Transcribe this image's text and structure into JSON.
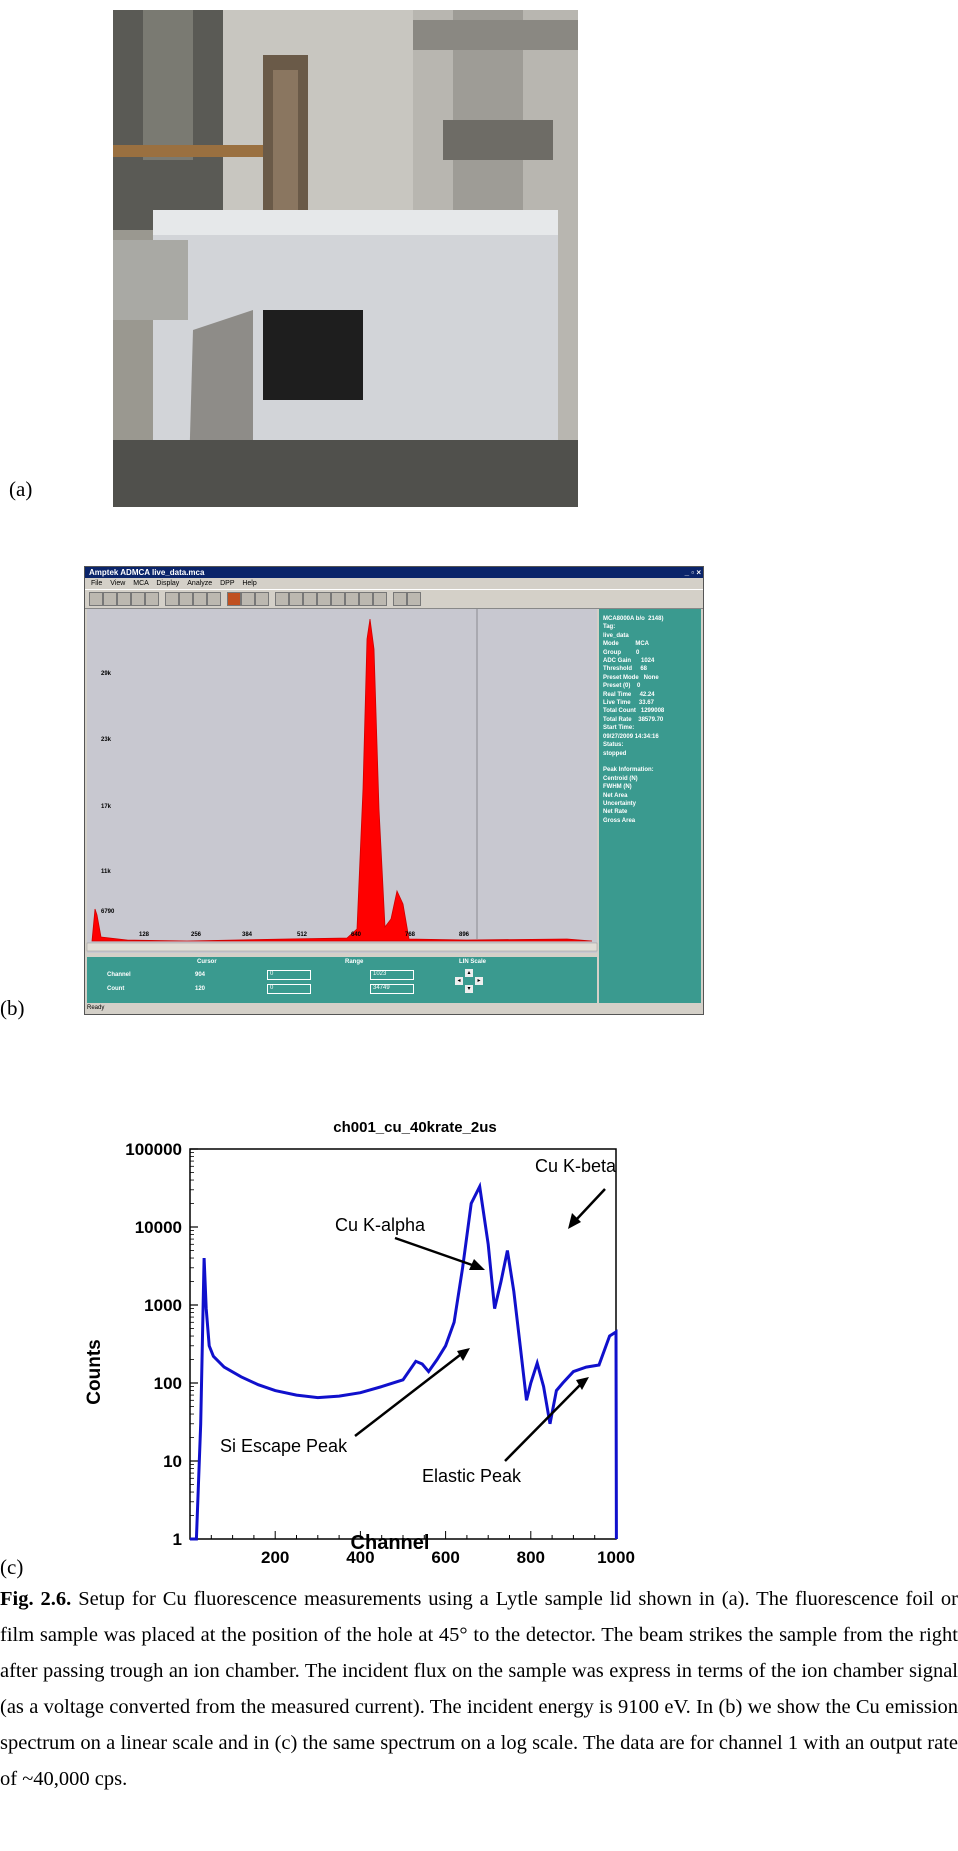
{
  "labels": {
    "a": "(a)",
    "b": "(b)",
    "c": "(c)"
  },
  "mca": {
    "title": "Amptek ADMCA   live_data.mca",
    "menu": [
      "File",
      "View",
      "MCA",
      "Display",
      "Analyze",
      "DPP",
      "Help"
    ],
    "y_ticks": [
      "29k",
      "23k",
      "17k",
      "11k",
      "6790"
    ],
    "x_ticks": [
      "128",
      "256",
      "384",
      "512",
      "640",
      "768",
      "896"
    ],
    "side_lines": [
      "MCA8000A b/o  2148)",
      "Tag:",
      "live_data",
      "Mode          MCA",
      "Group         0",
      "ADC Gain      1024",
      "Threshold     68",
      "Preset Mode   None",
      "Preset (0)    0",
      "Real Time     42.24",
      "Live Time     33.67",
      "Total Count   1299008",
      "Total Rate    38579.70",
      "Start Time:",
      "09/27/2009 14:34:16",
      "Status:",
      "stopped",
      "",
      "Peak Information:",
      "Centroid (N)",
      "FWHM (N)",
      "Net Area",
      "Uncertainty",
      "Net Rate",
      "Gross Area"
    ],
    "bottom": {
      "cursor_header": "Cursor",
      "range_header": "Range",
      "lin_scale": "LIN Scale",
      "channel_label": "Channel",
      "count_label": "Count",
      "channel_value": "904",
      "count_value": "120",
      "range_low_1": "0",
      "range_high_1": "1023",
      "range_low_2": "0",
      "range_high_2": "34749"
    },
    "status": "Ready"
  },
  "chart_data": {
    "type": "line",
    "title": "ch001_cu_40krate_2us",
    "xlabel": "Channel",
    "ylabel": "Counts",
    "xlim": [
      0,
      1000
    ],
    "ylim": [
      1,
      100000
    ],
    "yscale": "log",
    "x_ticks": [
      200,
      400,
      600,
      800,
      1000
    ],
    "y_ticks": [
      "1",
      "10",
      "100",
      "1000",
      "10000",
      "100000"
    ],
    "color": "#1010cc",
    "series": [
      {
        "x": [
          0,
          15,
          25,
          33,
          38,
          45,
          55,
          80,
          120,
          160,
          200,
          250,
          300,
          350,
          400,
          450,
          500,
          530,
          545,
          560,
          580,
          600,
          620,
          640,
          660,
          680,
          700,
          715,
          730,
          745,
          760,
          775,
          790,
          800,
          815,
          830,
          845,
          860,
          875,
          900,
          930,
          960,
          985,
          1000,
          1001
        ],
        "y": [
          1,
          1,
          30,
          4000,
          900,
          300,
          220,
          160,
          120,
          95,
          80,
          70,
          65,
          68,
          75,
          90,
          110,
          190,
          175,
          140,
          200,
          300,
          600,
          3000,
          20000,
          33000,
          6000,
          900,
          2000,
          5000,
          1500,
          300,
          60,
          100,
          180,
          90,
          30,
          80,
          100,
          140,
          160,
          170,
          400,
          450,
          1
        ]
      }
    ],
    "annotations": [
      "Cu K-alpha",
      "Cu K-beta",
      "Si Escape Peak",
      "Elastic Peak"
    ]
  },
  "caption": {
    "fig": "Fig. 2.6.",
    "text": " Setup for Cu fluorescence measurements using a Lytle sample lid shown in (a). The fluorescence foil or film sample was placed at the position of the hole at 45° to the detector. The beam strikes the sample from the right after passing trough an ion chamber.  The incident flux on the sample was express in terms of the ion chamber signal (as a voltage converted from the measured current).  The incident energy is 9100 eV.  In (b) we show the Cu emission spectrum on a linear scale and in (c) the same spectrum on a log scale. The data are for channel 1 with an output rate of ~40,000 cps."
  }
}
